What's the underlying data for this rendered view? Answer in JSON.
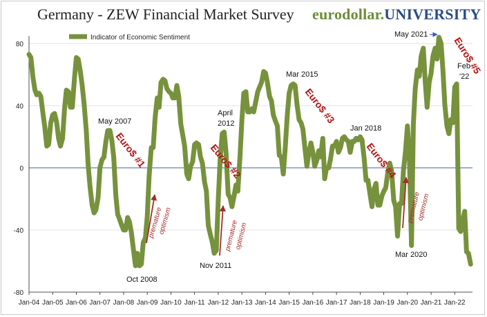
{
  "header": {
    "title": "Germany - ZEW Financial Market Survey",
    "brand_left": "eurodollar.",
    "brand_right": "UNIVERSITY"
  },
  "chart_data": {
    "type": "line",
    "title": "Germany - ZEW Financial Market Survey",
    "xlabel": "",
    "ylabel": "",
    "ylim": [
      -80,
      80
    ],
    "yticks": [
      -80,
      -40,
      0,
      40,
      80
    ],
    "xlim": [
      2004.0,
      2022.75
    ],
    "x_tick_labels": [
      "Jan-04",
      "Jan-05",
      "Jan-06",
      "Jan-07",
      "Jan-08",
      "Jan-09",
      "Jan-10",
      "Jan-11",
      "Jan-12",
      "Jan-13",
      "Jan-14",
      "Jan-15",
      "Jan-16",
      "Jan-17",
      "Jan-18",
      "Jan-19",
      "Jan-20",
      "Jan-21",
      "Jan-22"
    ],
    "legend": {
      "position": "top-left",
      "label": "Indicator of Economic Sentiment"
    },
    "series": [
      {
        "name": "Indicator of Economic Sentiment",
        "color": "#77923c",
        "points": [
          [
            2004.0,
            73
          ],
          [
            2004.08,
            71
          ],
          [
            2004.17,
            58
          ],
          [
            2004.25,
            50
          ],
          [
            2004.33,
            47
          ],
          [
            2004.42,
            48
          ],
          [
            2004.5,
            46
          ],
          [
            2004.58,
            36
          ],
          [
            2004.67,
            26
          ],
          [
            2004.75,
            14
          ],
          [
            2004.83,
            15
          ],
          [
            2004.92,
            29
          ],
          [
            2005.0,
            34
          ],
          [
            2005.08,
            35
          ],
          [
            2005.17,
            29
          ],
          [
            2005.25,
            19
          ],
          [
            2005.33,
            14
          ],
          [
            2005.42,
            19
          ],
          [
            2005.5,
            38
          ],
          [
            2005.58,
            50
          ],
          [
            2005.67,
            49
          ],
          [
            2005.75,
            39
          ],
          [
            2005.83,
            39
          ],
          [
            2005.92,
            57
          ],
          [
            2006.0,
            71
          ],
          [
            2006.08,
            70
          ],
          [
            2006.17,
            62
          ],
          [
            2006.25,
            53
          ],
          [
            2006.33,
            41
          ],
          [
            2006.42,
            24
          ],
          [
            2006.5,
            2
          ],
          [
            2006.58,
            -12
          ],
          [
            2006.67,
            -24
          ],
          [
            2006.75,
            -29
          ],
          [
            2006.83,
            -27
          ],
          [
            2006.92,
            -19
          ],
          [
            2007.0,
            0
          ],
          [
            2007.08,
            5
          ],
          [
            2007.17,
            7
          ],
          [
            2007.25,
            17
          ],
          [
            2007.33,
            24
          ],
          [
            2007.42,
            24
          ],
          [
            2007.5,
            18
          ],
          [
            2007.58,
            7
          ],
          [
            2007.67,
            -18
          ],
          [
            2007.75,
            -30
          ],
          [
            2007.83,
            -33
          ],
          [
            2007.92,
            -37
          ],
          [
            2008.0,
            -40
          ],
          [
            2008.08,
            -40
          ],
          [
            2008.17,
            -32
          ],
          [
            2008.25,
            -35
          ],
          [
            2008.33,
            -42
          ],
          [
            2008.42,
            -53
          ],
          [
            2008.5,
            -63
          ],
          [
            2008.58,
            -55
          ],
          [
            2008.67,
            -63
          ],
          [
            2008.75,
            -62
          ],
          [
            2008.83,
            -48
          ],
          [
            2008.92,
            -45
          ],
          [
            2009.0,
            -31
          ],
          [
            2009.08,
            -5
          ],
          [
            2009.17,
            13
          ],
          [
            2009.25,
            13
          ],
          [
            2009.33,
            32
          ],
          [
            2009.42,
            45
          ],
          [
            2009.5,
            39
          ],
          [
            2009.58,
            55
          ],
          [
            2009.67,
            57
          ],
          [
            2009.75,
            56
          ],
          [
            2009.83,
            51
          ],
          [
            2009.92,
            49
          ],
          [
            2010.0,
            48
          ],
          [
            2010.08,
            45
          ],
          [
            2010.17,
            45
          ],
          [
            2010.25,
            53
          ],
          [
            2010.33,
            46
          ],
          [
            2010.42,
            28
          ],
          [
            2010.5,
            21
          ],
          [
            2010.58,
            14
          ],
          [
            2010.67,
            -4
          ],
          [
            2010.75,
            -7
          ],
          [
            2010.83,
            1
          ],
          [
            2010.92,
            4
          ],
          [
            2011.0,
            15
          ],
          [
            2011.08,
            16
          ],
          [
            2011.17,
            15
          ],
          [
            2011.25,
            7
          ],
          [
            2011.33,
            3
          ],
          [
            2011.42,
            -9
          ],
          [
            2011.5,
            -15
          ],
          [
            2011.58,
            -37
          ],
          [
            2011.67,
            -43
          ],
          [
            2011.75,
            -48
          ],
          [
            2011.83,
            -55
          ],
          [
            2011.92,
            -53
          ],
          [
            2012.0,
            -21
          ],
          [
            2012.08,
            5
          ],
          [
            2012.17,
            22
          ],
          [
            2012.25,
            23
          ],
          [
            2012.33,
            10
          ],
          [
            2012.42,
            -17
          ],
          [
            2012.5,
            -19
          ],
          [
            2012.58,
            -25
          ],
          [
            2012.67,
            -18
          ],
          [
            2012.75,
            -11
          ],
          [
            2012.83,
            -15
          ],
          [
            2012.92,
            7
          ],
          [
            2013.0,
            31
          ],
          [
            2013.08,
            48
          ],
          [
            2013.17,
            49
          ],
          [
            2013.25,
            36
          ],
          [
            2013.33,
            36
          ],
          [
            2013.42,
            38
          ],
          [
            2013.5,
            36
          ],
          [
            2013.58,
            42
          ],
          [
            2013.67,
            49
          ],
          [
            2013.75,
            52
          ],
          [
            2013.83,
            55
          ],
          [
            2013.92,
            62
          ],
          [
            2014.0,
            61
          ],
          [
            2014.08,
            55
          ],
          [
            2014.17,
            46
          ],
          [
            2014.25,
            43
          ],
          [
            2014.33,
            34
          ],
          [
            2014.42,
            30
          ],
          [
            2014.5,
            27
          ],
          [
            2014.58,
            8
          ],
          [
            2014.67,
            7
          ],
          [
            2014.75,
            -4
          ],
          [
            2014.83,
            12
          ],
          [
            2014.92,
            34
          ],
          [
            2015.0,
            48
          ],
          [
            2015.08,
            53
          ],
          [
            2015.17,
            54
          ],
          [
            2015.25,
            53
          ],
          [
            2015.33,
            41
          ],
          [
            2015.42,
            31
          ],
          [
            2015.5,
            29
          ],
          [
            2015.58,
            25
          ],
          [
            2015.67,
            12
          ],
          [
            2015.75,
            1
          ],
          [
            2015.83,
            10
          ],
          [
            2015.92,
            16
          ],
          [
            2016.0,
            10
          ],
          [
            2016.08,
            1
          ],
          [
            2016.17,
            5
          ],
          [
            2016.25,
            11
          ],
          [
            2016.33,
            7
          ],
          [
            2016.42,
            19
          ],
          [
            2016.5,
            -7
          ],
          [
            2016.58,
            0
          ],
          [
            2016.67,
            0
          ],
          [
            2016.75,
            6
          ],
          [
            2016.83,
            14
          ],
          [
            2016.92,
            14
          ],
          [
            2017.0,
            17
          ],
          [
            2017.08,
            10
          ],
          [
            2017.17,
            13
          ],
          [
            2017.25,
            19
          ],
          [
            2017.33,
            20
          ],
          [
            2017.42,
            18
          ],
          [
            2017.5,
            17
          ],
          [
            2017.58,
            10
          ],
          [
            2017.67,
            17
          ],
          [
            2017.75,
            17
          ],
          [
            2017.83,
            19
          ],
          [
            2017.92,
            18
          ],
          [
            2018.0,
            20
          ],
          [
            2018.08,
            18
          ],
          [
            2018.17,
            6
          ],
          [
            2018.25,
            -8
          ],
          [
            2018.33,
            -8
          ],
          [
            2018.42,
            -17
          ],
          [
            2018.5,
            -25
          ],
          [
            2018.58,
            -14
          ],
          [
            2018.67,
            -10
          ],
          [
            2018.75,
            -24
          ],
          [
            2018.83,
            -24
          ],
          [
            2018.92,
            -18
          ],
          [
            2019.0,
            -15
          ],
          [
            2019.08,
            -13
          ],
          [
            2019.17,
            -3
          ],
          [
            2019.25,
            3
          ],
          [
            2019.33,
            -2
          ],
          [
            2019.42,
            -21
          ],
          [
            2019.5,
            -25
          ],
          [
            2019.58,
            -44
          ],
          [
            2019.67,
            -23
          ],
          [
            2019.75,
            -23
          ],
          [
            2019.83,
            -2
          ],
          [
            2019.92,
            11
          ],
          [
            2020.0,
            27
          ],
          [
            2020.08,
            8
          ],
          [
            2020.17,
            -50
          ],
          [
            2020.25,
            28
          ],
          [
            2020.33,
            51
          ],
          [
            2020.42,
            63
          ],
          [
            2020.5,
            59
          ],
          [
            2020.58,
            72
          ],
          [
            2020.67,
            77
          ],
          [
            2020.75,
            56
          ],
          [
            2020.83,
            39
          ],
          [
            2020.92,
            55
          ],
          [
            2021.0,
            61
          ],
          [
            2021.08,
            72
          ],
          [
            2021.17,
            77
          ],
          [
            2021.25,
            70
          ],
          [
            2021.33,
            84
          ],
          [
            2021.42,
            80
          ],
          [
            2021.5,
            63
          ],
          [
            2021.58,
            41
          ],
          [
            2021.67,
            27
          ],
          [
            2021.75,
            22
          ],
          [
            2021.83,
            31
          ],
          [
            2021.92,
            29
          ],
          [
            2022.0,
            52
          ],
          [
            2022.08,
            54
          ],
          [
            2022.17,
            -39
          ],
          [
            2022.25,
            -41
          ],
          [
            2022.33,
            -34
          ],
          [
            2022.42,
            -28
          ],
          [
            2022.5,
            -54
          ],
          [
            2022.58,
            -55
          ],
          [
            2022.67,
            -62
          ]
        ]
      }
    ],
    "reference_line": {
      "y": 0,
      "color": "#3b5fa6"
    },
    "annotations": {
      "dates": [
        {
          "text": "May 2007",
          "x": 2007.37,
          "y": 24
        },
        {
          "text": "Oct 2008",
          "x": 2008.75,
          "y": -63
        },
        {
          "text": "April",
          "x": 2012.25,
          "y": 23
        },
        {
          "text": "2012",
          "x": 2012.25,
          "y": 23
        },
        {
          "text": "Nov 2011",
          "x": 2011.83,
          "y": -55
        },
        {
          "text": "Mar 2015",
          "x": 2015.17,
          "y": 54
        },
        {
          "text": "Jan 2018",
          "x": 2018.0,
          "y": 20
        },
        {
          "text": "Mar 2020",
          "x": 2020.17,
          "y": -50
        },
        {
          "text": "May 2021",
          "x": 2021.33,
          "y": 84
        },
        {
          "text": "Feb",
          "x": 2022.08,
          "y": 54
        },
        {
          "text": "'22",
          "x": 2022.08,
          "y": 54
        }
      ],
      "episodes": [
        "Euro$ #1",
        "Euro$ #2",
        "Euro$ #3",
        "Euro$ #4",
        "Euro$ #5"
      ],
      "premature": {
        "line1": "premature",
        "line2": "optimism",
        "count": 3
      }
    }
  }
}
